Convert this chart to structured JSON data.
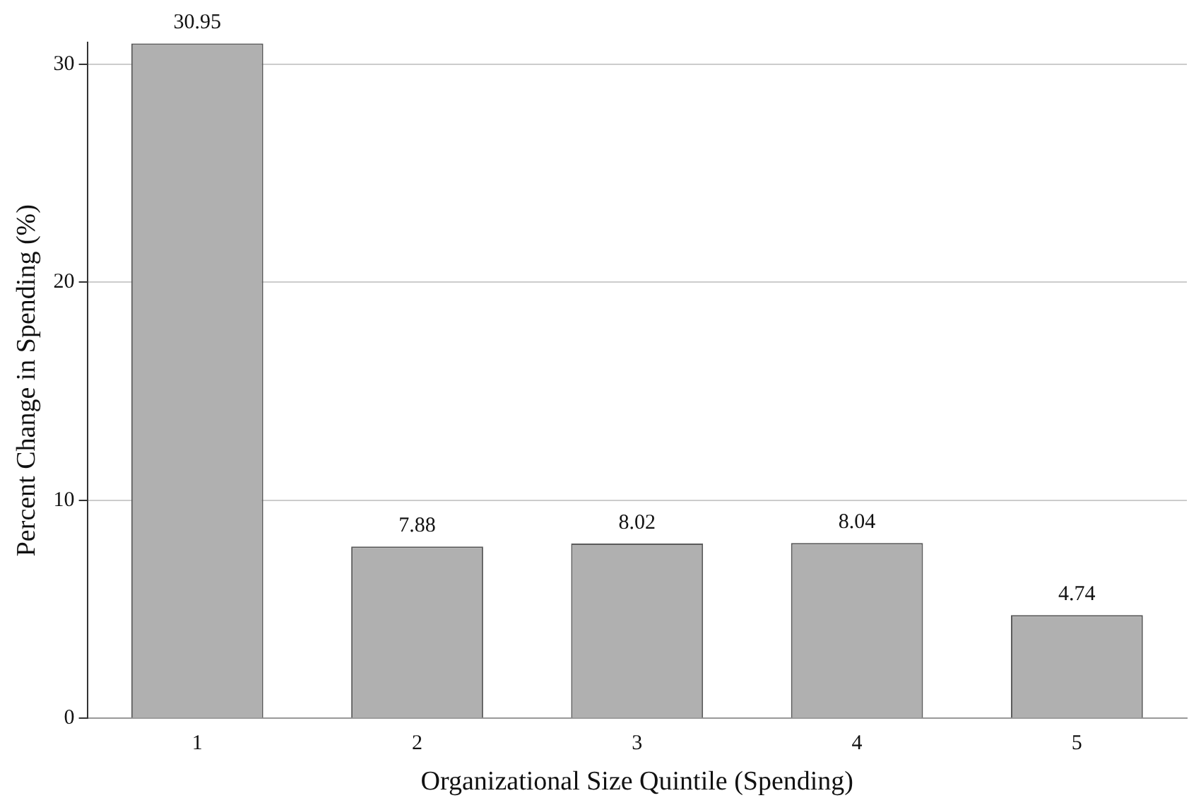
{
  "chart_data": {
    "type": "bar",
    "xlabel": "Organizational Size Quintile (Spending)",
    "ylabel": "Percent Change in Spending (%)",
    "categories": [
      "1",
      "2",
      "3",
      "4",
      "5"
    ],
    "values": [
      30.95,
      7.88,
      8.02,
      8.04,
      4.74
    ],
    "color": "#b0b0b0",
    "ylim": [
      0,
      31
    ],
    "yticks": [
      0,
      10,
      20,
      30
    ],
    "grid": "y",
    "data_labels": true
  }
}
